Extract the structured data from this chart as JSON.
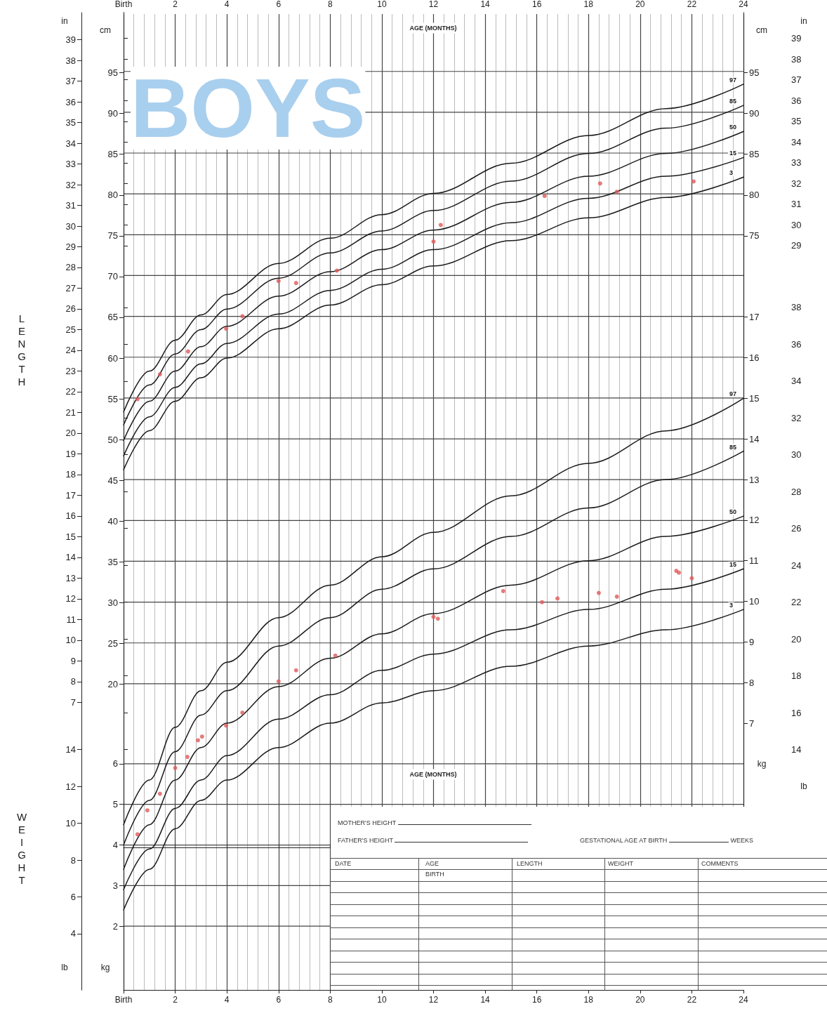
{
  "chart_data": [
    {
      "type": "line",
      "xlabel": "AGE (MONTHS)",
      "xlim": [
        0,
        24
      ],
      "xticks": [
        {
          "value": 0,
          "label": "Birth"
        },
        2,
        4,
        6,
        8,
        10,
        12,
        14,
        16,
        18,
        20,
        22,
        24
      ],
      "ylabel": "cm",
      "ylim": [
        -17.5,
        102.2
      ],
      "yticks": [
        20,
        25,
        30,
        35,
        40,
        45,
        50,
        55,
        60,
        65,
        70,
        75,
        80,
        85,
        90,
        95
      ],
      "y2label": "cm",
      "y2lim": [
        -17.5,
        102.2
      ],
      "y2ticks": [
        75,
        80,
        85,
        90,
        95
      ],
      "y3label": "in",
      "y3lim": [
        -6.89,
        40.24
      ],
      "y3ticks": [
        7,
        8,
        9,
        10,
        11,
        12,
        13,
        14,
        15,
        16,
        17,
        18,
        19,
        20,
        21,
        22,
        23,
        24,
        25,
        26,
        27,
        28,
        29,
        30,
        31,
        32,
        33,
        34,
        35,
        36,
        37,
        38,
        39
      ],
      "grid": true,
      "marker": "none",
      "line_style": "solid",
      "annotations": [
        "LENGTH",
        "BOYS"
      ],
      "series": [
        {
          "name": "97",
          "color": "#1a1a1a",
          "x": [
            0,
            1,
            2,
            3,
            4,
            6,
            8,
            10,
            12,
            15,
            18,
            21,
            24
          ],
          "values": [
            53.4,
            58.4,
            62.2,
            65.3,
            67.8,
            71.6,
            74.7,
            77.6,
            80.2,
            83.9,
            87.3,
            90.6,
            93.6
          ]
        },
        {
          "name": "85",
          "color": "#1a1a1a",
          "x": [
            0,
            1,
            2,
            3,
            4,
            6,
            8,
            10,
            12,
            15,
            18,
            21,
            24
          ],
          "values": [
            51.8,
            56.7,
            60.5,
            63.5,
            66.0,
            69.8,
            72.9,
            75.6,
            78.1,
            81.7,
            85.1,
            88.2,
            91.0
          ]
        },
        {
          "name": "50",
          "color": "#1a1a1a",
          "x": [
            0,
            1,
            2,
            3,
            4,
            6,
            8,
            10,
            12,
            15,
            18,
            21,
            24
          ],
          "values": [
            49.9,
            54.7,
            58.4,
            61.4,
            63.9,
            67.6,
            70.6,
            73.3,
            75.7,
            79.1,
            82.3,
            85.1,
            87.8
          ]
        },
        {
          "name": "15",
          "color": "#1a1a1a",
          "x": [
            0,
            1,
            2,
            3,
            4,
            6,
            8,
            10,
            12,
            15,
            18,
            21,
            24
          ],
          "values": [
            48.0,
            52.8,
            56.4,
            59.3,
            61.8,
            65.4,
            68.3,
            70.9,
            73.3,
            76.6,
            79.6,
            82.3,
            84.6
          ]
        },
        {
          "name": "3",
          "color": "#1a1a1a",
          "x": [
            0,
            1,
            2,
            3,
            4,
            6,
            8,
            10,
            12,
            15,
            18,
            21,
            24
          ],
          "values": [
            46.3,
            51.1,
            54.7,
            57.6,
            60.0,
            63.6,
            66.5,
            69.0,
            71.3,
            74.4,
            77.2,
            79.7,
            82.2
          ]
        }
      ]
    },
    {
      "type": "scatter",
      "xlim": [
        0,
        24
      ],
      "tick_labels": "y",
      "ylabel": "in",
      "ylim": [
        -6.89,
        40.24
      ],
      "yticks": [
        29,
        30,
        31,
        32,
        33,
        34,
        35,
        36,
        37,
        38,
        39
      ],
      "marker": "circle",
      "series": [
        {
          "color": "#e05a5a",
          "x": [
            0.54,
            1.41,
            2.5,
            3.97,
            4.6,
            6.0,
            6.68,
            8.26,
            12.0,
            12.28,
            16.3,
            18.45,
            19.1,
            22.07
          ],
          "values": [
            21.6,
            22.8,
            23.9,
            25.0,
            25.6,
            27.3,
            27.2,
            27.8,
            29.2,
            30.0,
            31.4,
            32.0,
            31.6,
            32.1
          ]
        }
      ]
    },
    {
      "type": "line",
      "xlabel": "AGE (MONTHS)",
      "xlim": [
        0,
        24
      ],
      "xticks": [
        {
          "value": 0,
          "label": "Birth"
        },
        2,
        4,
        6,
        8,
        10,
        12,
        14,
        16,
        18,
        20,
        22,
        24
      ],
      "ylabel": "kg",
      "ylim": [
        0.43,
        24.5
      ],
      "yticks": [
        2,
        3,
        4,
        5,
        6
      ],
      "y2label": "kg",
      "y2lim": [
        0.43,
        24.5
      ],
      "y2ticks": [
        7,
        8,
        9,
        10,
        11,
        12,
        13,
        14,
        15,
        16,
        17
      ],
      "y3label": "lb",
      "y3lim": [
        0.95,
        54.0
      ],
      "y3ticks": [
        4,
        6,
        8,
        10,
        12,
        14
      ],
      "grid": "y",
      "marker": "none",
      "line_style": "solid",
      "annotations": [
        "WEIGHT",
        "MOTHER'S HEIGHT",
        "FATHER'S HEIGHT",
        "GESTATIONAL AGE AT BIRTH",
        "WEEKS",
        "DATE",
        "AGE",
        "BIRTH",
        "LENGTH",
        "WEIGHT",
        "COMMENTS"
      ],
      "series": [
        {
          "name": "97",
          "color": "#1a1a1a",
          "x": [
            0,
            1,
            2,
            3,
            4,
            6,
            8,
            10,
            12,
            15,
            18,
            21,
            24
          ],
          "values": [
            4.5,
            5.6,
            6.9,
            7.8,
            8.5,
            9.6,
            10.4,
            11.1,
            11.7,
            12.6,
            13.4,
            14.2,
            15.0
          ]
        },
        {
          "name": "85",
          "color": "#1a1a1a",
          "x": [
            0,
            1,
            2,
            3,
            4,
            6,
            8,
            10,
            12,
            15,
            18,
            21,
            24
          ],
          "values": [
            4.0,
            5.1,
            6.3,
            7.2,
            7.8,
            8.9,
            9.6,
            10.3,
            10.8,
            11.6,
            12.3,
            13.0,
            13.7
          ]
        },
        {
          "name": "50",
          "color": "#1a1a1a",
          "x": [
            0,
            1,
            2,
            3,
            4,
            6,
            8,
            10,
            12,
            15,
            18,
            21,
            24
          ],
          "values": [
            3.4,
            4.5,
            5.6,
            6.4,
            7.0,
            7.9,
            8.6,
            9.2,
            9.7,
            10.4,
            11.0,
            11.6,
            12.1
          ]
        },
        {
          "name": "15",
          "color": "#1a1a1a",
          "x": [
            0,
            1,
            2,
            3,
            4,
            6,
            8,
            10,
            12,
            15,
            18,
            21,
            24
          ],
          "values": [
            2.9,
            3.9,
            4.9,
            5.6,
            6.2,
            7.1,
            7.7,
            8.3,
            8.7,
            9.3,
            9.8,
            10.3,
            10.8
          ]
        },
        {
          "name": "3",
          "color": "#1a1a1a",
          "x": [
            0,
            1,
            2,
            3,
            4,
            6,
            8,
            10,
            12,
            15,
            18,
            21,
            24
          ],
          "values": [
            2.4,
            3.4,
            4.4,
            5.1,
            5.6,
            6.4,
            7.0,
            7.5,
            7.8,
            8.4,
            8.9,
            9.3,
            9.8
          ]
        }
      ]
    },
    {
      "type": "scatter",
      "xlim": [
        0,
        24
      ],
      "tick_labels": "y",
      "ylabel": "lb",
      "ylim": [
        0.95,
        54.0
      ],
      "yticks": [
        14,
        16,
        18,
        20,
        22,
        24,
        26,
        28,
        30,
        32,
        34,
        36,
        38
      ],
      "marker": "circle",
      "series": [
        {
          "color": "#e05a5a",
          "x": [
            0.54,
            0.92,
            1.41,
            2.0,
            2.47,
            2.88,
            3.04,
            3.97,
            4.6,
            6.0,
            6.68,
            8.2,
            12.0,
            12.17,
            14.7,
            16.2,
            16.8,
            18.4,
            19.1,
            21.4,
            21.5,
            22.0
          ],
          "values": [
            9.4,
            10.7,
            11.6,
            13.0,
            13.6,
            14.5,
            14.7,
            15.3,
            16.0,
            17.7,
            18.3,
            19.1,
            21.2,
            21.1,
            22.6,
            22.0,
            22.2,
            22.5,
            22.3,
            23.7,
            23.6,
            23.3
          ]
        }
      ]
    }
  ]
}
